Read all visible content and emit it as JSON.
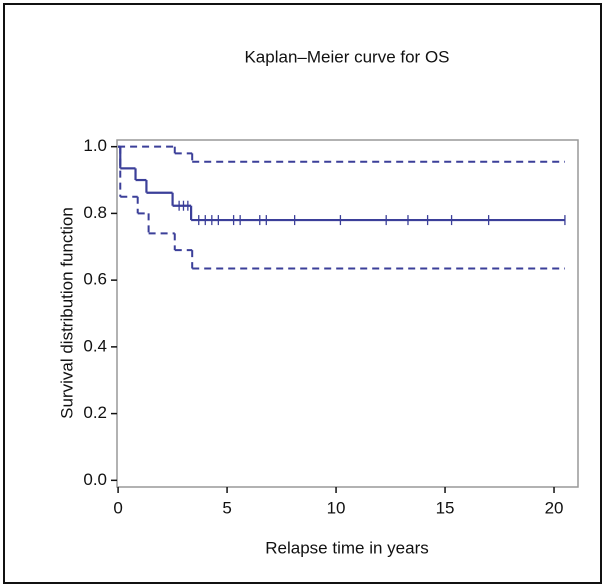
{
  "chart_data": {
    "type": "step",
    "title": "Kaplan–Meier curve for OS",
    "x_label": "Relapse time in years",
    "y_label": "Survival distribution function",
    "xlim": [
      -0.05,
      21.1
    ],
    "ylim": [
      -0.02,
      1.02
    ],
    "xticks": [
      0,
      5,
      10,
      15,
      20
    ],
    "yticks": [
      {
        "value": 0,
        "label": "0.0"
      },
      {
        "value": 0.2,
        "label": "0.2"
      },
      {
        "value": 0.4,
        "label": "0.4"
      },
      {
        "value": 0.6,
        "label": "0.6"
      },
      {
        "value": 0.8,
        "label": "0.8"
      },
      {
        "value": 1,
        "label": "1.0"
      }
    ],
    "series": [
      {
        "color": "#3b3f99",
        "style": "solid",
        "x": [
          0,
          0.1,
          0.8,
          1.3,
          2.5,
          3.35,
          20.5
        ],
        "values": [
          1.0,
          0.935,
          0.9,
          0.862,
          0.823,
          0.78,
          0.78
        ]
      },
      {
        "color": "#3b3f99",
        "style": "dashed",
        "x": [
          0,
          2.6,
          3.4,
          20.5
        ],
        "values": [
          1.0,
          0.98,
          0.955,
          0.955
        ]
      },
      {
        "color": "#3b3f99",
        "style": "dashed",
        "x": [
          0,
          0.1,
          0.9,
          1.4,
          2.6,
          3.4,
          20.5
        ],
        "values": [
          1.0,
          0.85,
          0.8,
          0.74,
          0.69,
          0.635,
          0.635
        ]
      }
    ],
    "censored": {
      "color": "#3b3f99",
      "x": [
        2.8,
        3.0,
        3.2,
        3.7,
        4.0,
        4.3,
        4.6,
        5.3,
        5.6,
        6.5,
        6.8,
        8.1,
        10.2,
        12.3,
        13.3,
        14.2,
        15.3,
        17.0,
        20.5
      ],
      "values": [
        0.823,
        0.823,
        0.823,
        0.78,
        0.78,
        0.78,
        0.78,
        0.78,
        0.78,
        0.78,
        0.78,
        0.78,
        0.78,
        0.78,
        0.78,
        0.78,
        0.78,
        0.78,
        0.78
      ]
    }
  }
}
